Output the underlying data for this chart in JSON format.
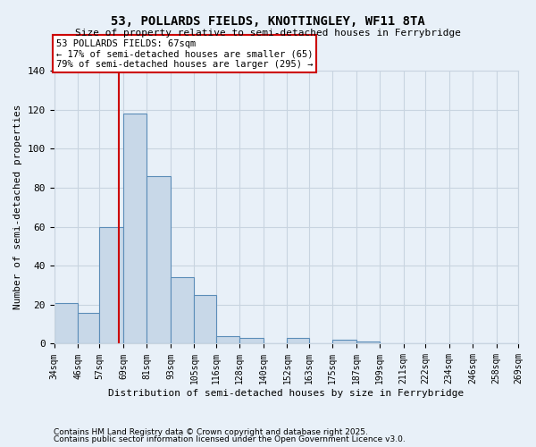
{
  "title1": "53, POLLARDS FIELDS, KNOTTINGLEY, WF11 8TA",
  "title2": "Size of property relative to semi-detached houses in Ferrybridge",
  "xlabel": "Distribution of semi-detached houses by size in Ferrybridge",
  "ylabel": "Number of semi-detached properties",
  "bin_edges": [
    34,
    46,
    57,
    69,
    81,
    93,
    105,
    116,
    128,
    140,
    152,
    163,
    175,
    187,
    199,
    211,
    222,
    234,
    246,
    258,
    269
  ],
  "bar_heights": [
    21,
    16,
    60,
    118,
    86,
    34,
    25,
    4,
    3,
    0,
    3,
    0,
    2,
    1,
    0,
    0,
    0,
    0,
    0,
    0
  ],
  "bar_color": "#c8d8e8",
  "bar_edge_color": "#5b8db8",
  "property_size": 67,
  "red_line_color": "#cc0000",
  "annotation_line1": "53 POLLARDS FIELDS: 67sqm",
  "annotation_line2": "← 17% of semi-detached houses are smaller (65)",
  "annotation_line3": "79% of semi-detached houses are larger (295) →",
  "annotation_box_color": "#ffffff",
  "annotation_box_edge": "#cc0000",
  "grid_color": "#c8d4e0",
  "background_color": "#e8f0f8",
  "ylim": [
    0,
    140
  ],
  "yticks": [
    0,
    20,
    40,
    60,
    80,
    100,
    120,
    140
  ],
  "footnote1": "Contains HM Land Registry data © Crown copyright and database right 2025.",
  "footnote2": "Contains public sector information licensed under the Open Government Licence v3.0."
}
